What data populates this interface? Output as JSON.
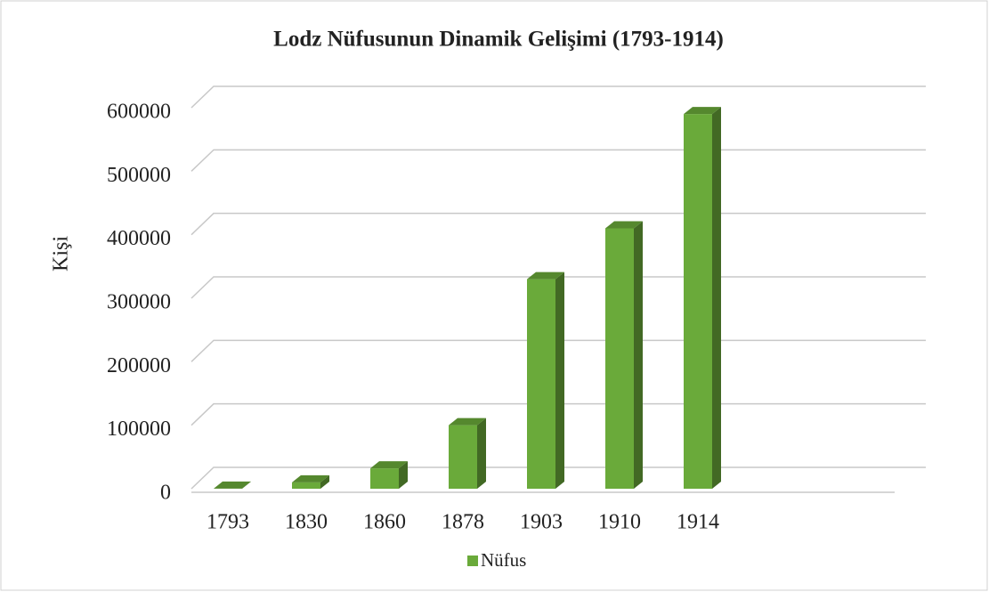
{
  "chart_data": {
    "type": "bar3d",
    "title": "Lodz Nüfusunun Dinamik Gelişimi (1793-1914)",
    "ylabel": "Kişi",
    "categories": [
      "1793",
      "1830",
      "1860",
      "1878",
      "1903",
      "1910",
      "1914"
    ],
    "series": [
      {
        "name": "Nüfus",
        "color": "#6aaa3a",
        "values": [
          200,
          10000,
          32000,
          100000,
          330000,
          410000,
          590000
        ]
      }
    ],
    "ylim": [
      0,
      600000
    ],
    "yticks": [
      0,
      100000,
      200000,
      300000,
      400000,
      500000,
      600000
    ],
    "grid": true,
    "legend": "bottom"
  }
}
